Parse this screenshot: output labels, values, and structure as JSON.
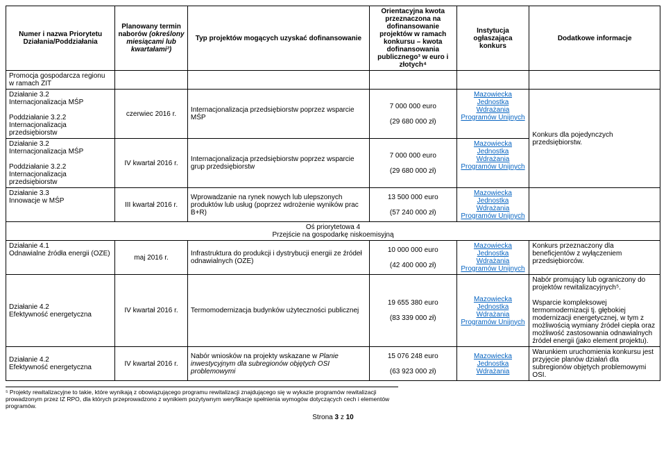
{
  "headers": {
    "col1": "Numer i nazwa Priorytetu Działania/Poddziałania",
    "col2": "Planowany termin naborów (określony miesiącami lub kwartałami²)",
    "col3": "Typ projektów mogących uzyskać dofinansowanie",
    "col4": "Orientacyjna kwota przeznaczona na dofinansowanie projektów w ramach konkursu – kwota dofinansowania publicznego³ w euro i złotych⁴",
    "col5": "Instytucja ogłaszająca konkurs",
    "col6": "Dodatkowe informacje"
  },
  "rows": {
    "promo": "Promocja gospodarcza regionu w ramach ZIT",
    "r1_name": "Działanie 3.2\nInternacjonalizacja MŚP\n\nPoddziałanie 3.2.2\nInternacjonalizacja przedsiębiorstw",
    "r1_term": "czerwiec 2016 r.",
    "r1_type": "Internacjonalizacja przedsiębiorstw poprzez wsparcie MŚP",
    "r1_euro": "7 000 000 euro\n\n(29 680 000 zł)",
    "r1_inst": "Mazowiecka Jednostka Wdrażania Programów Unijnych",
    "r2_name": "Działanie 3.2\nInternacjonalizacja MŚP\n\nPoddziałanie 3.2.2\nInternacjonalizacja przedsiębiorstw",
    "r2_term": "IV kwartał 2016 r.",
    "r2_type": "Internacjonalizacja przedsiębiorstw poprzez wsparcie grup przedsiębiorstw",
    "r2_euro": "7 000 000 euro\n\n(29 680 000 zł)",
    "r2_inst": "Mazowiecka Jednostka Wdrażania Programów Unijnych",
    "r12_info": "Konkurs dla pojedynczych przedsiębiorstw.",
    "r3_name": "Działanie 3.3\nInnowacje w MŚP",
    "r3_term": "III kwartał 2016 r.",
    "r3_type": "Wprowadzanie na rynek nowych lub ulepszonych produktów lub usług (poprzez wdrożenie wyników prac B+R)",
    "r3_euro": "13 500 000 euro\n\n(57 240 000 zł)",
    "r3_inst": "Mazowiecka Jednostka Wdrażania Programów Unijnych",
    "section": "Oś priorytetowa 4\nPrzejście na gospodarkę niskoemisyjną",
    "r4_name": "Działanie 4.1\nOdnawialne źródła energii (OZE)",
    "r4_term": "maj 2016 r.",
    "r4_type": "Infrastruktura do produkcji i dystrybucji energii ze źródeł odnawialnych (OZE)",
    "r4_euro": "10 000 000 euro\n\n(42 400 000 zł)",
    "r4_inst": "Mazowiecka Jednostka Wdrażania Programów Unijnych",
    "r4_info": "Konkurs przeznaczony dla beneficjentów z wyłączeniem przedsiębiorców.",
    "r5_name": "Działanie 4.2\nEfektywność energetyczna",
    "r5_term": "IV kwartał 2016 r.",
    "r5_type": "Termomodernizacja budynków użyteczności publicznej",
    "r5_euro": "19 655 380 euro\n\n(83 339 000 zł)",
    "r5_inst": "Mazowiecka Jednostka Wdrażania Programów Unijnych",
    "r5_info": "Nabór promujący lub ograniczony do projektów rewitalizacyjnych⁵.\n\nWsparcie kompleksowej termomodernizacji tj. głębokiej modernizacji energetycznej, w tym z możliwością wymiany źródeł ciepła oraz możliwość zastosowania odnawialnych źródeł energii (jako element projektu).",
    "r6_name": "Działanie 4.2\nEfektywność energetyczna",
    "r6_term": "IV kwartał 2016 r.",
    "r6_type": "Nabór wniosków na projekty wskazane w Planie inwestycyjnym dla subregionów objętych OSI problemowymi",
    "r6_euro": "15 076 248 euro\n\n(63 923 000 zł)",
    "r6_inst": "Mazowiecka Jednostka Wdrażania",
    "r6_info": "Warunkiem uruchomienia konkursu jest przyjęcie planów działań dla subregionów objętych problemowymi OSI."
  },
  "footnote": "⁵ Projekty rewitalizacyjne to takie, które wynikają z obowiązującego programu rewitalizacji znajdującego się w wykazie programów rewitalizacji prowadzonym przez IZ RPO, dla których przeprowadzono z wynikiem pozytywnym weryfikacje spełnienia wymogów dotyczących cech i elementów programów.",
  "page": "Strona 3 z 10"
}
